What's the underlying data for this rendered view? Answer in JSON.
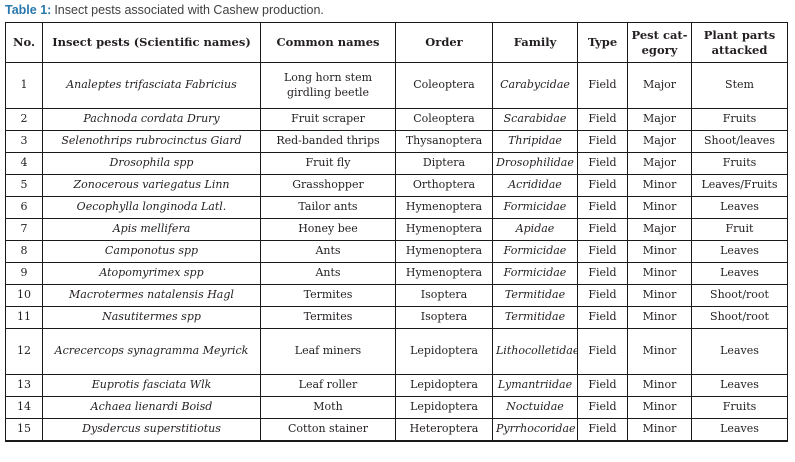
{
  "caption": {
    "label": "Table 1:",
    "text": "Insect pests associated with Cashew production."
  },
  "colors": {
    "caption_label_accent": "#2878ab",
    "border": "#1a1a1a",
    "body_text": "#231f20"
  },
  "table": {
    "columns": [
      {
        "key": "no",
        "label": "No."
      },
      {
        "key": "scientific",
        "label": "Insect pests (Scientific names)"
      },
      {
        "key": "common",
        "label": "Common names"
      },
      {
        "key": "order",
        "label": "Order"
      },
      {
        "key": "family",
        "label": "Family"
      },
      {
        "key": "type",
        "label": "Type"
      },
      {
        "key": "category",
        "label": "Pest cat-\negory"
      },
      {
        "key": "parts",
        "label": "Plant parts\nattacked"
      }
    ],
    "rows": [
      {
        "no": "1",
        "scientific": "Analeptes trifasciata Fabricius",
        "common": "Long horn stem girdling beetle",
        "order": "Coleoptera",
        "family": "Carabycidae",
        "type": "Field",
        "category": "Major",
        "parts": "Stem"
      },
      {
        "no": "2",
        "scientific": "Pachnoda cordata Drury",
        "common": "Fruit scraper",
        "order": "Coleoptera",
        "family": "Scarabidae",
        "type": "Field",
        "category": "Major",
        "parts": "Fruits"
      },
      {
        "no": "3",
        "scientific": "Selenothrips rubrocinctus Giard",
        "common": "Red-banded thrips",
        "order": "Thysanoptera",
        "family": "Thripidae",
        "type": "Field",
        "category": "Major",
        "parts": "Shoot/leaves"
      },
      {
        "no": "4",
        "scientific": "Drosophila spp",
        "common": "Fruit fly",
        "order": "Diptera",
        "family": "Drosophilidae",
        "type": "Field",
        "category": "Major",
        "parts": "Fruits"
      },
      {
        "no": "5",
        "scientific": "Zonocerous variegatus Linn",
        "common": "Grasshopper",
        "order": "Orthoptera",
        "family": "Acrididae",
        "type": "Field",
        "category": "Minor",
        "parts": "Leaves/Fruits"
      },
      {
        "no": "6",
        "scientific": "Oecophylla longinoda Latl.",
        "common": "Tailor ants",
        "order": "Hymenoptera",
        "family": "Formicidae",
        "type": "Field",
        "category": "Minor",
        "parts": "Leaves"
      },
      {
        "no": "7",
        "scientific": "Apis mellifera",
        "common": "Honey bee",
        "order": "Hymenoptera",
        "family": "Apidae",
        "type": "Field",
        "category": "Major",
        "parts": "Fruit"
      },
      {
        "no": "8",
        "scientific": "Camponotus spp",
        "common": "Ants",
        "order": "Hymenoptera",
        "family": "Formicidae",
        "type": "Field",
        "category": "Minor",
        "parts": "Leaves"
      },
      {
        "no": "9",
        "scientific": "Atopomyrimex spp",
        "common": "Ants",
        "order": "Hymenoptera",
        "family": "Formicidae",
        "type": "Field",
        "category": "Minor",
        "parts": "Leaves"
      },
      {
        "no": "10",
        "scientific": "Macrotermes natalensis Hagl",
        "common": "Termites",
        "order": "Isoptera",
        "family": "Termitidae",
        "type": "Field",
        "category": "Minor",
        "parts": "Shoot/root"
      },
      {
        "no": "11",
        "scientific": "Nasutitermes spp",
        "common": "Termites",
        "order": "Isoptera",
        "family": "Termitidae",
        "type": "Field",
        "category": "Minor",
        "parts": "Shoot/root"
      },
      {
        "no": "12",
        "scientific": "Acrecercops synagramma Meyrick",
        "common": "Leaf miners",
        "order": "Lepidoptera",
        "family": "Lithocolletidae",
        "type": "Field",
        "category": "Minor",
        "parts": "Leaves"
      },
      {
        "no": "13",
        "scientific": "Euprotis fasciata Wlk",
        "common": "Leaf roller",
        "order": "Lepidoptera",
        "family": "Lymantriidae",
        "type": "Field",
        "category": "Minor",
        "parts": "Leaves"
      },
      {
        "no": "14",
        "scientific": "Achaea lienardi Boisd",
        "common": "Moth",
        "order": "Lepidoptera",
        "family": "Noctuidae",
        "type": "Field",
        "category": "Minor",
        "parts": "Fruits"
      },
      {
        "no": "15",
        "scientific": "Dysdercus superstitiotus",
        "common": "Cotton stainer",
        "order": "Heteroptera",
        "family": "Pyrrhocoridae",
        "type": "Field",
        "category": "Minor",
        "parts": "Leaves"
      }
    ]
  }
}
